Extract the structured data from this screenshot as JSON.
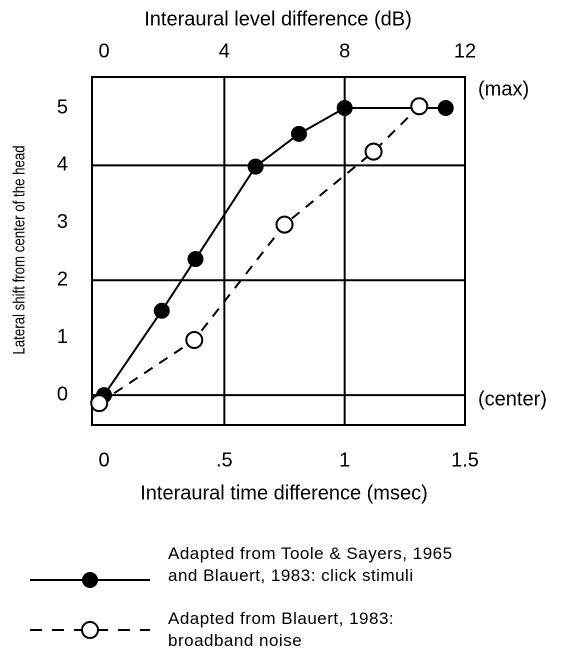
{
  "chart_data": {
    "type": "line",
    "xlabel": "Interaural time difference (msec)",
    "x2label": "Interaural level difference (dB)",
    "ylabel": "Lateral shift from center of the head",
    "annotations": [
      {
        "text": "(max)",
        "y": 5
      },
      {
        "text": "(center)",
        "y": 0
      }
    ],
    "xlim": [
      -0.05,
      1.5
    ],
    "xticks": [
      0,
      {
        "value": 0.5,
        "label": ".5"
      },
      1,
      1.5
    ],
    "x2lim": [
      -0.4,
      12
    ],
    "x2ticks": [
      0,
      4,
      8,
      12
    ],
    "ylim": [
      -0.52,
      5.54
    ],
    "yticks": [
      0,
      1,
      2,
      3,
      4,
      5
    ],
    "xgrid": [
      0.5,
      1
    ],
    "ygrid": [
      0,
      2,
      4
    ],
    "series": [
      {
        "name": "Adapted from Toole & Sayers, 1965 and Blauert, 1983: click stimuli",
        "color": "#000000",
        "dashed": false,
        "marker": "filled",
        "x": [
          0,
          0.24,
          0.38,
          0.63,
          0.81,
          1.0,
          1.42
        ],
        "values": [
          0,
          1.47,
          2.37,
          3.98,
          4.55,
          5.0,
          5.0
        ]
      },
      {
        "name": "Adapted from Blauert, 1983: broadband noise",
        "color": "#000000",
        "dashed": true,
        "marker": "open",
        "x": [
          -0.02,
          0.375,
          0.75,
          1.12,
          1.31
        ],
        "values": [
          -0.14,
          0.96,
          2.97,
          4.24,
          5.03
        ]
      }
    ]
  }
}
